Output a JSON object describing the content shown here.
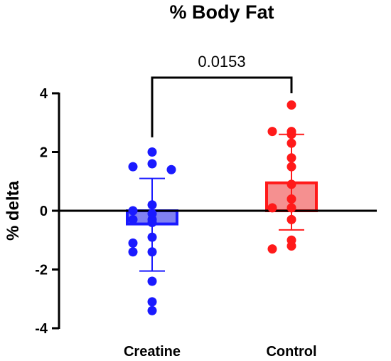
{
  "chart_data": {
    "type": "bar",
    "title": "% Body Fat",
    "xlabel": "",
    "ylabel": "% delta",
    "ylim": [
      -4,
      4
    ],
    "yticks": [
      -4,
      -2,
      0,
      2,
      4
    ],
    "categories": [
      "Creatine",
      "Control"
    ],
    "series": [
      {
        "category": "Creatine",
        "mean": -0.45,
        "error_upper": 1.1,
        "error_lower": -2.05,
        "color": "#1a1aff",
        "fill": "#8080f2",
        "points": [
          2.0,
          1.6,
          1.5,
          1.4,
          0.2,
          -0.1,
          0.0,
          -0.3,
          -0.4,
          -0.3,
          -0.9,
          -1.1,
          -1.4,
          -1.4,
          -2.4,
          -3.1,
          -3.4
        ]
      },
      {
        "category": "Control",
        "mean": 0.95,
        "error_upper": 2.6,
        "error_lower": -0.65,
        "color": "#ff1a1a",
        "fill": "#f59090",
        "points": [
          3.6,
          2.7,
          2.7,
          2.6,
          2.3,
          1.8,
          1.5,
          0.9,
          0.4,
          0.1,
          0.1,
          -0.3,
          -1.0,
          -1.2,
          -1.3
        ]
      }
    ],
    "comparison": {
      "label": "0.0153",
      "between": [
        "Creatine",
        "Control"
      ]
    }
  }
}
